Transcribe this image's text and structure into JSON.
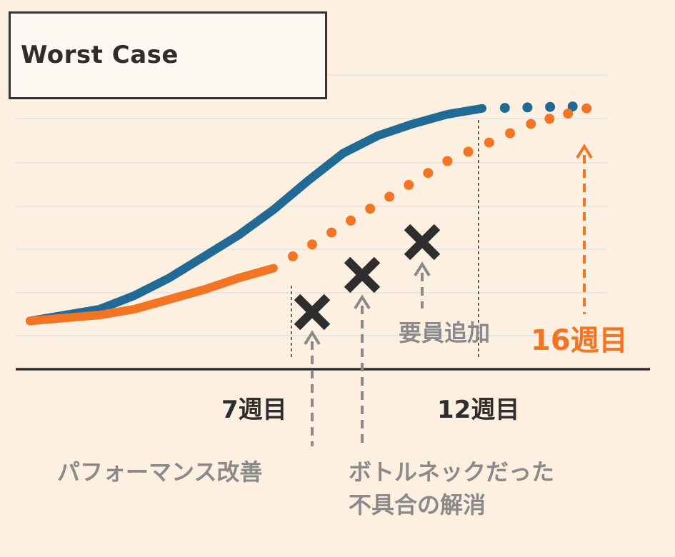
{
  "title": "Worst Case",
  "colors": {
    "background": "#fdf0e1",
    "series_a": "#216a96",
    "series_b": "#f37422",
    "marker": "#2e2e2e",
    "annotation": "#8a8a8a",
    "grid": "#dfe3e6"
  },
  "ticks": {
    "week7": "7週目",
    "week12": "12週目"
  },
  "labels": {
    "added_staff": "要員追加",
    "week16": "16週目",
    "perf_improve": "パフォーマンス改善",
    "bottleneck_line1": "ボトルネックだった",
    "bottleneck_line2": "不具合の解消"
  },
  "chart_data": {
    "type": "line",
    "title": "Worst Case",
    "xlabel": "",
    "ylabel": "",
    "x_ticks": [
      {
        "x": 7,
        "label": "7週目"
      },
      {
        "x": 12,
        "label": "12週目"
      }
    ],
    "xlim": [
      0,
      17
    ],
    "ylim": [
      0,
      100
    ],
    "grid": true,
    "series": [
      {
        "color": "#216a96",
        "solid": [
          [
            0,
            5
          ],
          [
            2,
            11
          ],
          [
            3,
            18
          ],
          [
            4,
            27
          ],
          [
            5,
            38
          ],
          [
            6,
            49
          ],
          [
            7,
            62
          ],
          [
            8,
            77
          ],
          [
            9,
            91
          ],
          [
            10,
            100
          ],
          [
            11,
            106
          ],
          [
            12,
            111
          ],
          [
            13,
            114
          ]
        ],
        "dotted": [
          [
            13,
            114
          ],
          [
            15.6,
            115
          ]
        ]
      },
      {
        "color": "#f37422",
        "solid": [
          [
            0,
            5
          ],
          [
            2,
            8
          ],
          [
            3,
            11
          ],
          [
            4,
            16
          ],
          [
            5,
            21
          ],
          [
            6,
            27
          ],
          [
            7,
            32
          ]
        ],
        "dotted": [
          [
            7,
            32
          ],
          [
            12,
            87
          ],
          [
            14.4,
            106
          ],
          [
            16,
            114
          ]
        ]
      }
    ],
    "markers": [
      {
        "x": 8.4,
        "y": 12,
        "label": "パフォーマンス改善"
      },
      {
        "x": 10.0,
        "y": 28,
        "label": "ボトルネックだった不具合の解消"
      },
      {
        "x": 11.5,
        "y": 45,
        "label": "要員追加"
      }
    ],
    "annotations": [
      {
        "x": 7,
        "label": "7週目"
      },
      {
        "x": 12.5,
        "label": "12週目"
      },
      {
        "x": 16,
        "label": "16週目"
      }
    ]
  }
}
